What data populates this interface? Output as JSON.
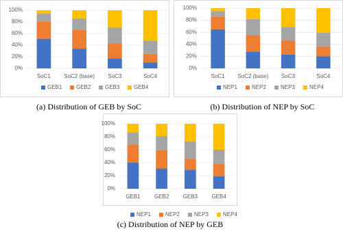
{
  "chart_data": [
    {
      "type": "bar",
      "stacked": true,
      "caption": "(a) Distribution of GEB by SoC",
      "categories": [
        "SoC1",
        "SoC2 (base)",
        "SoC3",
        "SoC4"
      ],
      "series": [
        {
          "name": "GEB1",
          "color": "#4472c4",
          "values": [
            51,
            34,
            17,
            10
          ]
        },
        {
          "name": "GEB2",
          "color": "#ed7d31",
          "values": [
            30,
            32,
            26,
            15
          ]
        },
        {
          "name": "GEB3",
          "color": "#a5a5a5",
          "values": [
            13,
            20,
            27,
            23
          ]
        },
        {
          "name": "GEB4",
          "color": "#ffc000",
          "values": [
            6,
            14,
            30,
            52
          ]
        }
      ],
      "ylim": [
        0,
        100
      ],
      "yticks": [
        {
          "value": 0,
          "label": "0%"
        },
        {
          "value": 20,
          "label": "20%"
        },
        {
          "value": 40,
          "label": "40%"
        },
        {
          "value": 60,
          "label": "60%"
        },
        {
          "value": 80,
          "label": "80%"
        },
        {
          "value": 100,
          "label": "100%"
        }
      ],
      "grid": true,
      "legend": "bottom"
    },
    {
      "type": "bar",
      "stacked": true,
      "caption": "(b) Distribution of NEP by SoC",
      "categories": [
        "SoC1",
        "SoC2 (base)",
        "SoC3",
        "SoC4"
      ],
      "series": [
        {
          "name": "NEP1",
          "color": "#4472c4",
          "values": [
            65,
            28,
            23,
            20
          ]
        },
        {
          "name": "NEP2",
          "color": "#ed7d31",
          "values": [
            21,
            27,
            23,
            16
          ]
        },
        {
          "name": "NEP3",
          "color": "#a5a5a5",
          "values": [
            9,
            27,
            23,
            23
          ]
        },
        {
          "name": "NEP4",
          "color": "#ffc000",
          "values": [
            5,
            18,
            31,
            41
          ]
        }
      ],
      "ylim": [
        0,
        100
      ],
      "yticks": [
        {
          "value": 0,
          "label": "0%"
        },
        {
          "value": 20,
          "label": "20%"
        },
        {
          "value": 40,
          "label": "40%"
        },
        {
          "value": 60,
          "label": "60%"
        },
        {
          "value": 80,
          "label": "80%"
        },
        {
          "value": 100,
          "label": "100%"
        }
      ],
      "grid": true,
      "legend": "bottom"
    },
    {
      "type": "bar",
      "stacked": true,
      "caption": "(c) Distribution of NEP by GEB",
      "categories": [
        "GEB1",
        "GEB2",
        "GEB3",
        "GEB4"
      ],
      "series": [
        {
          "name": "NEP1",
          "color": "#4472c4",
          "values": [
            40,
            31,
            29,
            19
          ]
        },
        {
          "name": "NEP2",
          "color": "#ed7d31",
          "values": [
            28,
            28,
            17,
            19
          ]
        },
        {
          "name": "NEP3",
          "color": "#a5a5a5",
          "values": [
            19,
            22,
            27,
            22
          ]
        },
        {
          "name": "NEP4",
          "color": "#ffc000",
          "values": [
            13,
            19,
            27,
            40
          ]
        }
      ],
      "ylim": [
        0,
        100
      ],
      "yticks": [
        {
          "value": 0,
          "label": "0%"
        },
        {
          "value": 20,
          "label": "20%"
        },
        {
          "value": 40,
          "label": "40%"
        },
        {
          "value": 60,
          "label": "60%"
        },
        {
          "value": 80,
          "label": "80%"
        },
        {
          "value": 100,
          "label": "100%"
        }
      ],
      "grid": true,
      "legend": "bottom"
    }
  ]
}
